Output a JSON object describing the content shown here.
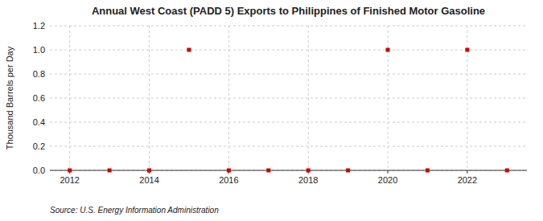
{
  "chart_data": {
    "type": "scatter",
    "title": "Annual West Coast (PADD 5) Exports to Philippines of Finished Motor Gasoline",
    "y_label": "Thousand Barrels per Day",
    "source": "Source: U.S. Energy Information Administration",
    "x": [
      2012,
      2013,
      2014,
      2015,
      2016,
      2017,
      2018,
      2019,
      2020,
      2021,
      2022,
      2023
    ],
    "values": [
      0,
      0,
      0,
      1.0,
      0,
      0,
      0,
      0,
      1.0,
      0,
      1.0,
      0
    ],
    "color": "#cc0000",
    "marker": "square",
    "xlim": [
      2011.5,
      2023.5
    ],
    "ylim": [
      0,
      1.2
    ],
    "xticks": [
      2012,
      2014,
      2016,
      2018,
      2020,
      2022
    ],
    "yticks": [
      {
        "value": 0.0,
        "label": "0.0"
      },
      0.2,
      0.4,
      0.6,
      0.8,
      {
        "value": 1.0,
        "label": "1.0"
      },
      1.2
    ],
    "grid": true
  }
}
